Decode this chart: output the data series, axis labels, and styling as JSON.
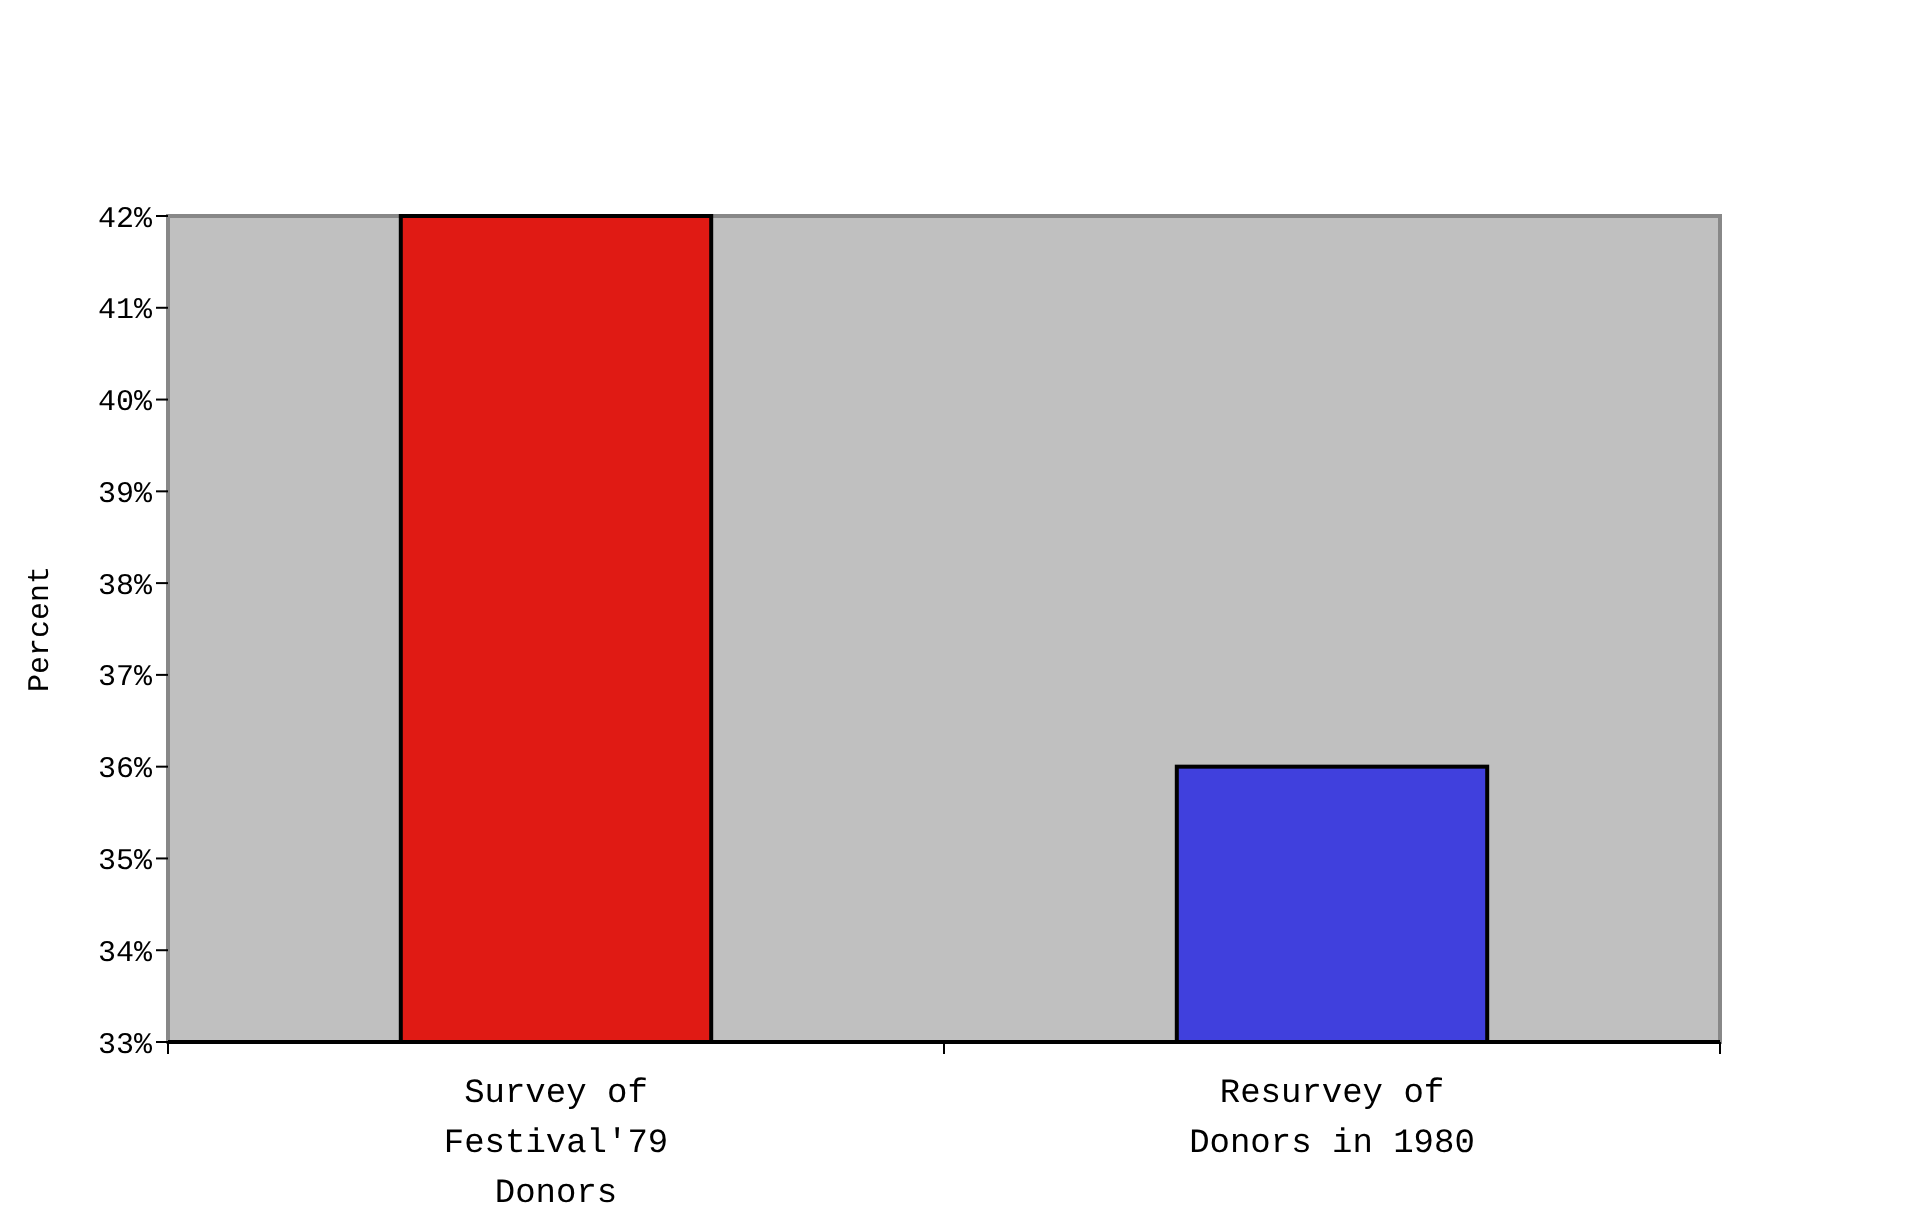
{
  "chart_data": {
    "type": "bar",
    "ylabel": "Percent",
    "categories": [
      "Survey of Festival'79 Donors",
      "Resurvey of Donors in 1980"
    ],
    "values": [
      42,
      36
    ],
    "colors": [
      "#e01a14",
      "#4040dd"
    ],
    "ylim": [
      33,
      42
    ],
    "yticks": [
      {
        "value": 33,
        "label": "33%"
      },
      {
        "value": 34,
        "label": "34%"
      },
      {
        "value": 35,
        "label": "35%"
      },
      {
        "value": 36,
        "label": "36%"
      },
      {
        "value": 37,
        "label": "37%"
      },
      {
        "value": 38,
        "label": "38%"
      },
      {
        "value": 39,
        "label": "39%"
      },
      {
        "value": 40,
        "label": "40%"
      },
      {
        "value": 41,
        "label": "41%"
      },
      {
        "value": 42,
        "label": "42%"
      }
    ],
    "grid": false
  }
}
